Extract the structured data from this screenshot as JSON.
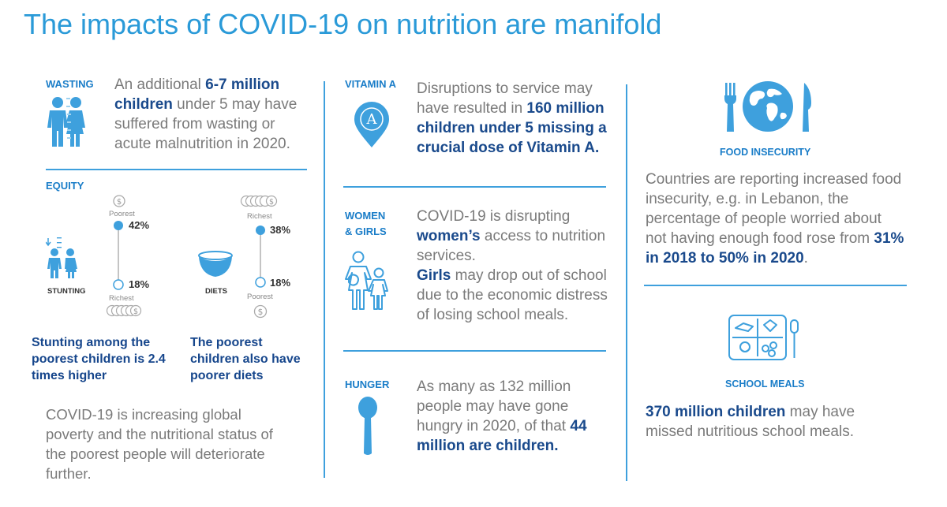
{
  "title": "The impacts of COVID-19 on nutrition are manifold",
  "wasting": {
    "label": "WASTING",
    "pre": "An additional ",
    "bold": "6-7 million children",
    "post": " under 5 may have suffered from wasting or acute malnutrition in 2020."
  },
  "equity": {
    "label": "EQUITY",
    "stunting": {
      "top_label": "Poorest",
      "top_pct": "42%",
      "bottom_pct": "18%",
      "bottom_label": "Richest",
      "caption": "STUNTING",
      "top_value": 42,
      "bottom_value": 18
    },
    "diets": {
      "top_label": "Richest",
      "top_pct": "38%",
      "bottom_pct": "18%",
      "bottom_label": "Poorest",
      "caption": "DIETS",
      "top_value": 38,
      "bottom_value": 18
    },
    "stunting_summary": "Stunting among the poorest children is 2.4 times higher",
    "diets_summary": "The poorest children also have poorer diets",
    "poverty_text": "COVID-19 is increasing global poverty and the nutritional status of the poorest people will deteriorate further."
  },
  "vitamin_a": {
    "label": "VITAMIN A",
    "icon_letter": "A",
    "pre": "Disruptions to service may have resulted in ",
    "bold": "160 million children under 5 missing a crucial dose of Vitamin A."
  },
  "women_girls": {
    "label_line1": "WOMEN",
    "label_line2": "& GIRLS",
    "pre": "COVID-19 is disrupting ",
    "bold1": "women’s",
    "mid": " access to nutrition services.",
    "bold2": "Girls",
    "post": " may drop out of school due to the economic distress of losing school meals."
  },
  "hunger": {
    "label": "HUNGER",
    "pre": "As many as 132 million people may have gone hungry in 2020, of that ",
    "bold": "44 million are children."
  },
  "food_insecurity": {
    "label": "FOOD INSECURITY",
    "pre": "Countries are reporting increased food insecurity, e.g. in Lebanon, the percentage of people worried about not having enough food rose from ",
    "bold": "31% in 2018 to 50% in 2020",
    "post": "."
  },
  "school_meals": {
    "label": "SCHOOL MEALS",
    "bold": "370 million children",
    "post": " may have missed nutritious school meals."
  },
  "colors": {
    "title": "#2a9ad8",
    "label": "#1a7dc8",
    "icon": "#3ea0dd",
    "emphasis": "#16468c",
    "body": "#7a7a7a"
  }
}
